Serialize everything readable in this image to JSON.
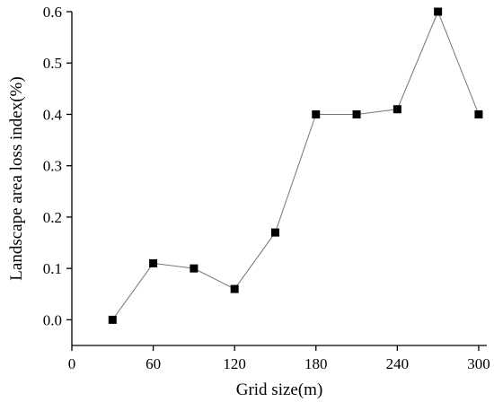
{
  "chart_data": {
    "type": "line",
    "xlabel": "Grid size(m)",
    "ylabel": "Landscape area loss index(%)",
    "xlim": [
      0,
      306
    ],
    "ylim": [
      -0.05,
      0.6
    ],
    "xticks": [
      0,
      60,
      120,
      180,
      240,
      300
    ],
    "xtick_labels": [
      "0",
      "60",
      "120",
      "180",
      "240",
      "300"
    ],
    "yticks": [
      0.0,
      0.1,
      0.2,
      0.3,
      0.4,
      0.5,
      0.6
    ],
    "ytick_labels": [
      "0.0",
      "0.1",
      "0.2",
      "0.3",
      "0.4",
      "0.5",
      "0.6"
    ],
    "grid": false,
    "marker": "square",
    "line_color": "#777777",
    "marker_color": "#000000",
    "series": [
      {
        "x": [
          30,
          60,
          90,
          120,
          150,
          180,
          210,
          240,
          270,
          300
        ],
        "values": [
          0.0,
          0.11,
          0.1,
          0.06,
          0.17,
          0.4,
          0.4,
          0.41,
          0.6,
          0.4
        ]
      }
    ]
  }
}
